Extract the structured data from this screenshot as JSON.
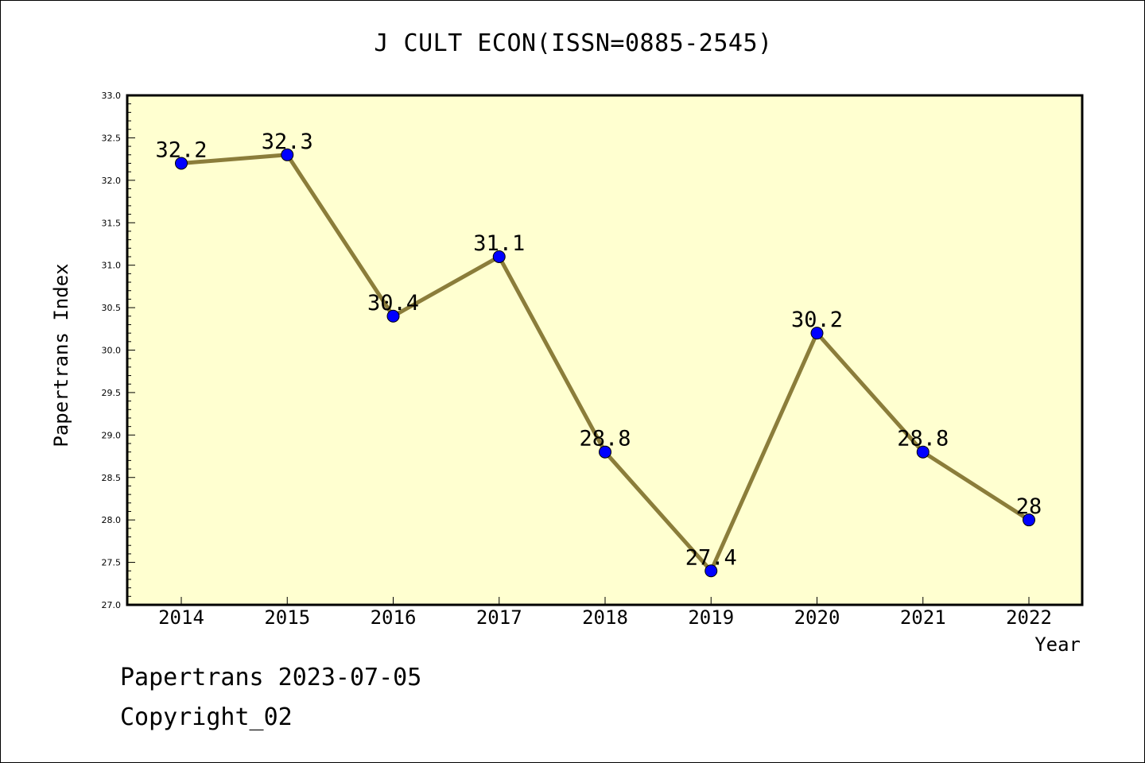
{
  "chart_data": {
    "type": "line",
    "title": "J CULT ECON(ISSN=0885-2545)",
    "xlabel": "Year",
    "ylabel": "Papertrans Index",
    "categories": [
      "2014",
      "2015",
      "2016",
      "2017",
      "2018",
      "2019",
      "2020",
      "2021",
      "2022"
    ],
    "series": [
      {
        "values": [
          32.2,
          32.3,
          30.4,
          31.1,
          28.8,
          27.4,
          30.2,
          28.8,
          28.0
        ],
        "labels": [
          "32.2",
          "32.3",
          "30.4",
          "31.1",
          "28.8",
          "27.4",
          "30.2",
          "28.8",
          "28"
        ]
      }
    ],
    "ylim": [
      27.0,
      33.0
    ],
    "yticks": [
      "27.0",
      "27.5",
      "28.0",
      "28.5",
      "29.0",
      "29.5",
      "30.0",
      "30.5",
      "31.0",
      "31.5",
      "32.0",
      "32.5",
      "33.0"
    ],
    "grid": false,
    "colors": {
      "plot_background": "#ffffd0",
      "line": "#8b7d3a",
      "marker": "#0000ff"
    }
  },
  "footer": {
    "line1": "Papertrans 2023-07-05",
    "line2": "Copyright_02"
  }
}
